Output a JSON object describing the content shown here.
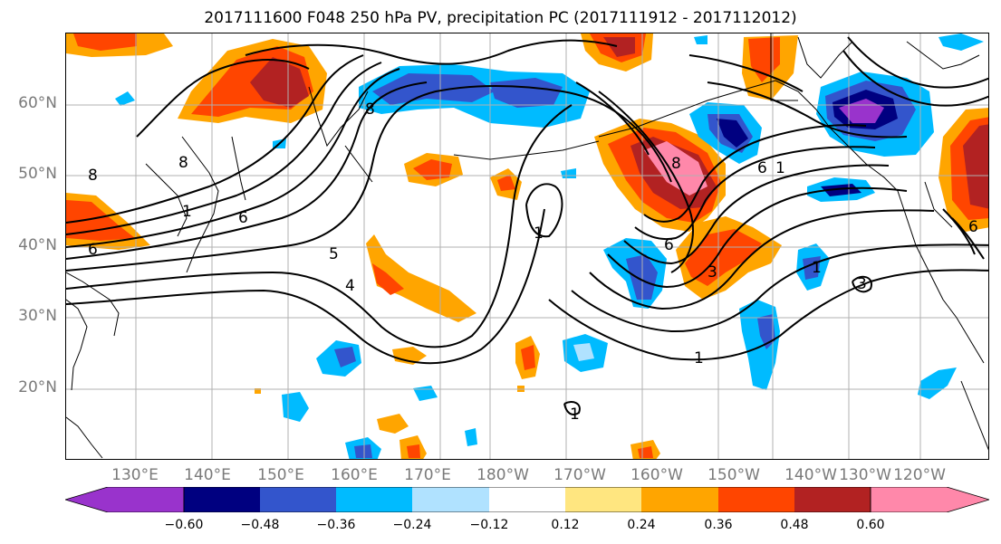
{
  "title": "2017111600 F048 250 hPa PV, precipitation PC (2017111912 - 2017112012)",
  "latitude_labels": [
    "60°N",
    "50°N",
    "40°N",
    "30°N",
    "20°N"
  ],
  "longitude_labels": [
    "130°E",
    "140°E",
    "150°E",
    "160°E",
    "170°E",
    "180°W",
    "170°W",
    "160°W",
    "150°W",
    "140°W",
    "130°W",
    "120°W"
  ],
  "colorbar": {
    "ticks": [
      "−0.60",
      "−0.48",
      "−0.36",
      "−0.24",
      "−0.12",
      "0.12",
      "0.24",
      "0.36",
      "0.48",
      "0.60"
    ],
    "colors": [
      "#9933cc",
      "#000080",
      "#3355cc",
      "#00bbff",
      "#b0e2ff",
      "#ffffff",
      "#ffe680",
      "#ffa500",
      "#ff4500",
      "#b22222",
      "#ff88aa"
    ]
  },
  "contour_labels": [
    "8",
    "8",
    "8",
    "6",
    "6",
    "1",
    "5",
    "4",
    "1",
    "6",
    "3",
    "1",
    "1",
    "1",
    "3",
    "8",
    "6",
    "6",
    "1"
  ],
  "colors": {
    "contour": "#000000",
    "coastline": "#000000",
    "grid": "#b0b0b0",
    "axis_label": "#7a7a7a"
  }
}
